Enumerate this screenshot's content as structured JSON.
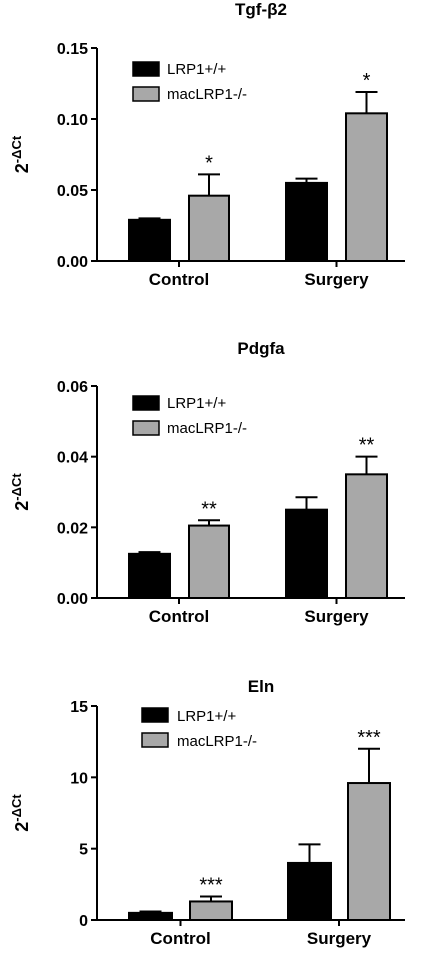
{
  "chart_data": [
    {
      "type": "bar",
      "title": "Tgf-β2",
      "ylabel": "2-ΔCt",
      "xlabel": "",
      "ylim": [
        0,
        0.15
      ],
      "yticks": [
        "0.00",
        "0.05",
        "0.10",
        "0.15"
      ],
      "categories": [
        "Control",
        "Surgery"
      ],
      "legend_position": "top-left",
      "series": [
        {
          "name": "LRP1+/+",
          "color": "#000000",
          "values": [
            0.029,
            0.055
          ],
          "errors": [
            0.001,
            0.003
          ],
          "significance": [
            "",
            ""
          ]
        },
        {
          "name": "macLRP1-/-",
          "color": "#a8a8a8",
          "values": [
            0.046,
            0.104
          ],
          "errors": [
            0.015,
            0.015
          ],
          "significance": [
            "*",
            "*"
          ]
        }
      ]
    },
    {
      "type": "bar",
      "title": "Pdgfa",
      "ylabel": "2-ΔCt",
      "xlabel": "",
      "ylim": [
        0,
        0.06
      ],
      "yticks": [
        "0.00",
        "0.02",
        "0.04",
        "0.06"
      ],
      "categories": [
        "Control",
        "Surgery"
      ],
      "legend_position": "top-left",
      "series": [
        {
          "name": "LRP1+/+",
          "color": "#000000",
          "values": [
            0.0125,
            0.025
          ],
          "errors": [
            0.0005,
            0.0035
          ],
          "significance": [
            "",
            ""
          ]
        },
        {
          "name": "macLRP1-/-",
          "color": "#a8a8a8",
          "values": [
            0.0205,
            0.035
          ],
          "errors": [
            0.0015,
            0.005
          ],
          "significance": [
            "**",
            "**"
          ]
        }
      ]
    },
    {
      "type": "bar",
      "title": "Eln",
      "ylabel": "2-ΔCt",
      "xlabel": "",
      "ylim": [
        0,
        15
      ],
      "yticks": [
        "0",
        "5",
        "10",
        "15"
      ],
      "categories": [
        "Control",
        "Surgery"
      ],
      "legend_position": "top-left",
      "series": [
        {
          "name": "LRP1+/+",
          "color": "#000000",
          "values": [
            0.5,
            4.0
          ],
          "errors": [
            0.1,
            1.3
          ],
          "significance": [
            "",
            ""
          ]
        },
        {
          "name": "macLRP1-/-",
          "color": "#a8a8a8",
          "values": [
            1.3,
            9.6
          ],
          "errors": [
            0.35,
            2.4
          ],
          "significance": [
            "***",
            "***"
          ]
        }
      ]
    }
  ]
}
